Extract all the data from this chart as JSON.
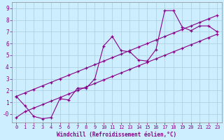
{
  "xlabel": "Windchill (Refroidissement éolien,°C)",
  "bg_color": "#cceeff",
  "line_color": "#880088",
  "xlim": [
    -0.5,
    23.5
  ],
  "ylim": [
    -0.7,
    9.5
  ],
  "xticks": [
    0,
    1,
    2,
    3,
    4,
    5,
    6,
    7,
    8,
    9,
    10,
    11,
    12,
    13,
    14,
    15,
    16,
    17,
    18,
    19,
    20,
    21,
    22,
    23
  ],
  "ytick_vals": [
    0,
    1,
    2,
    3,
    4,
    5,
    6,
    7,
    8,
    9
  ],
  "ytick_labels": [
    "-0",
    "1",
    "2",
    "3",
    "4",
    "5",
    "6",
    "7",
    "8",
    "9"
  ],
  "line1": [
    [
      0,
      1.5
    ],
    [
      1,
      0.7
    ],
    [
      2,
      -0.2
    ],
    [
      3,
      -0.4
    ],
    [
      4,
      -0.3
    ],
    [
      5,
      1.3
    ],
    [
      6,
      1.2
    ],
    [
      7,
      2.2
    ],
    [
      8,
      2.2
    ],
    [
      9,
      3.0
    ],
    [
      10,
      5.8
    ],
    [
      11,
      6.6
    ],
    [
      12,
      5.4
    ],
    [
      13,
      5.3
    ],
    [
      14,
      4.6
    ],
    [
      15,
      4.5
    ],
    [
      16,
      5.5
    ],
    [
      17,
      8.8
    ],
    [
      18,
      8.8
    ],
    [
      19,
      7.4
    ],
    [
      20,
      7.1
    ],
    [
      21,
      7.5
    ],
    [
      22,
      7.5
    ],
    [
      23,
      7.0
    ]
  ],
  "line2": [
    [
      0,
      -0.3
    ],
    [
      1,
      0.2
    ],
    [
      2,
      0.5
    ],
    [
      3,
      0.8
    ],
    [
      4,
      1.1
    ],
    [
      5,
      1.4
    ],
    [
      6,
      1.7
    ],
    [
      7,
      2.0
    ],
    [
      8,
      2.3
    ],
    [
      9,
      2.6
    ],
    [
      10,
      2.9
    ],
    [
      11,
      3.2
    ],
    [
      12,
      3.5
    ],
    [
      13,
      3.8
    ],
    [
      14,
      4.1
    ],
    [
      15,
      4.4
    ],
    [
      16,
      4.7
    ],
    [
      17,
      5.0
    ],
    [
      18,
      5.3
    ],
    [
      19,
      5.6
    ],
    [
      20,
      5.9
    ],
    [
      21,
      6.2
    ],
    [
      22,
      6.5
    ],
    [
      23,
      6.8
    ]
  ],
  "line3": [
    [
      0,
      1.5
    ],
    [
      1,
      1.8
    ],
    [
      2,
      2.1
    ],
    [
      3,
      2.4
    ],
    [
      4,
      2.7
    ],
    [
      5,
      3.0
    ],
    [
      6,
      3.3
    ],
    [
      7,
      3.6
    ],
    [
      8,
      3.9
    ],
    [
      9,
      4.2
    ],
    [
      10,
      4.5
    ],
    [
      11,
      4.8
    ],
    [
      12,
      5.1
    ],
    [
      13,
      5.4
    ],
    [
      14,
      5.7
    ],
    [
      15,
      6.0
    ],
    [
      16,
      6.3
    ],
    [
      17,
      6.6
    ],
    [
      18,
      6.9
    ],
    [
      19,
      7.2
    ],
    [
      20,
      7.5
    ],
    [
      21,
      7.8
    ],
    [
      22,
      8.1
    ],
    [
      23,
      8.4
    ]
  ],
  "grid_color": "#aaccdd"
}
